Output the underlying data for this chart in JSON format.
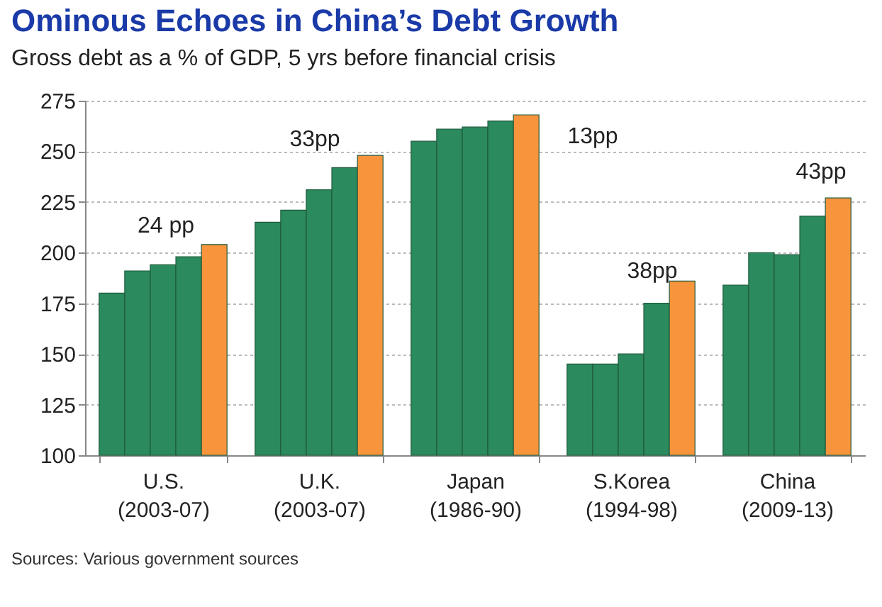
{
  "chart_data": {
    "type": "bar",
    "title": "Ominous Echoes in China’s Debt Growth",
    "subtitle": "Gross debt as a % of GDP, 5 yrs before financial crisis",
    "categories": [
      "U.S.\n(2003-07)",
      "U.K.\n(2003-07)",
      "Japan\n(1986-90)",
      "S.Korea\n(1994-98)",
      "China\n(2009-13)"
    ],
    "series": [
      {
        "color": "#2b8a5e",
        "values": [
          180,
          215,
          255,
          145,
          184
        ]
      },
      {
        "color": "#2b8a5e",
        "values": [
          191,
          221,
          261,
          145,
          200
        ]
      },
      {
        "color": "#2b8a5e",
        "values": [
          194,
          231,
          262,
          150,
          199
        ]
      },
      {
        "color": "#2b8a5e",
        "values": [
          198,
          242,
          265,
          175,
          218
        ]
      },
      {
        "color": "#f7943c",
        "values": [
          204,
          248,
          268,
          186,
          227
        ]
      }
    ],
    "ylim": [
      100,
      275
    ],
    "yticks": [
      100,
      125,
      150,
      175,
      200,
      225,
      250,
      275
    ],
    "grid": "y",
    "legend": false,
    "annotations": [
      "24 pp",
      "33pp",
      "13pp",
      "38pp",
      "43pp",
      "Sources: Various government sources"
    ]
  }
}
